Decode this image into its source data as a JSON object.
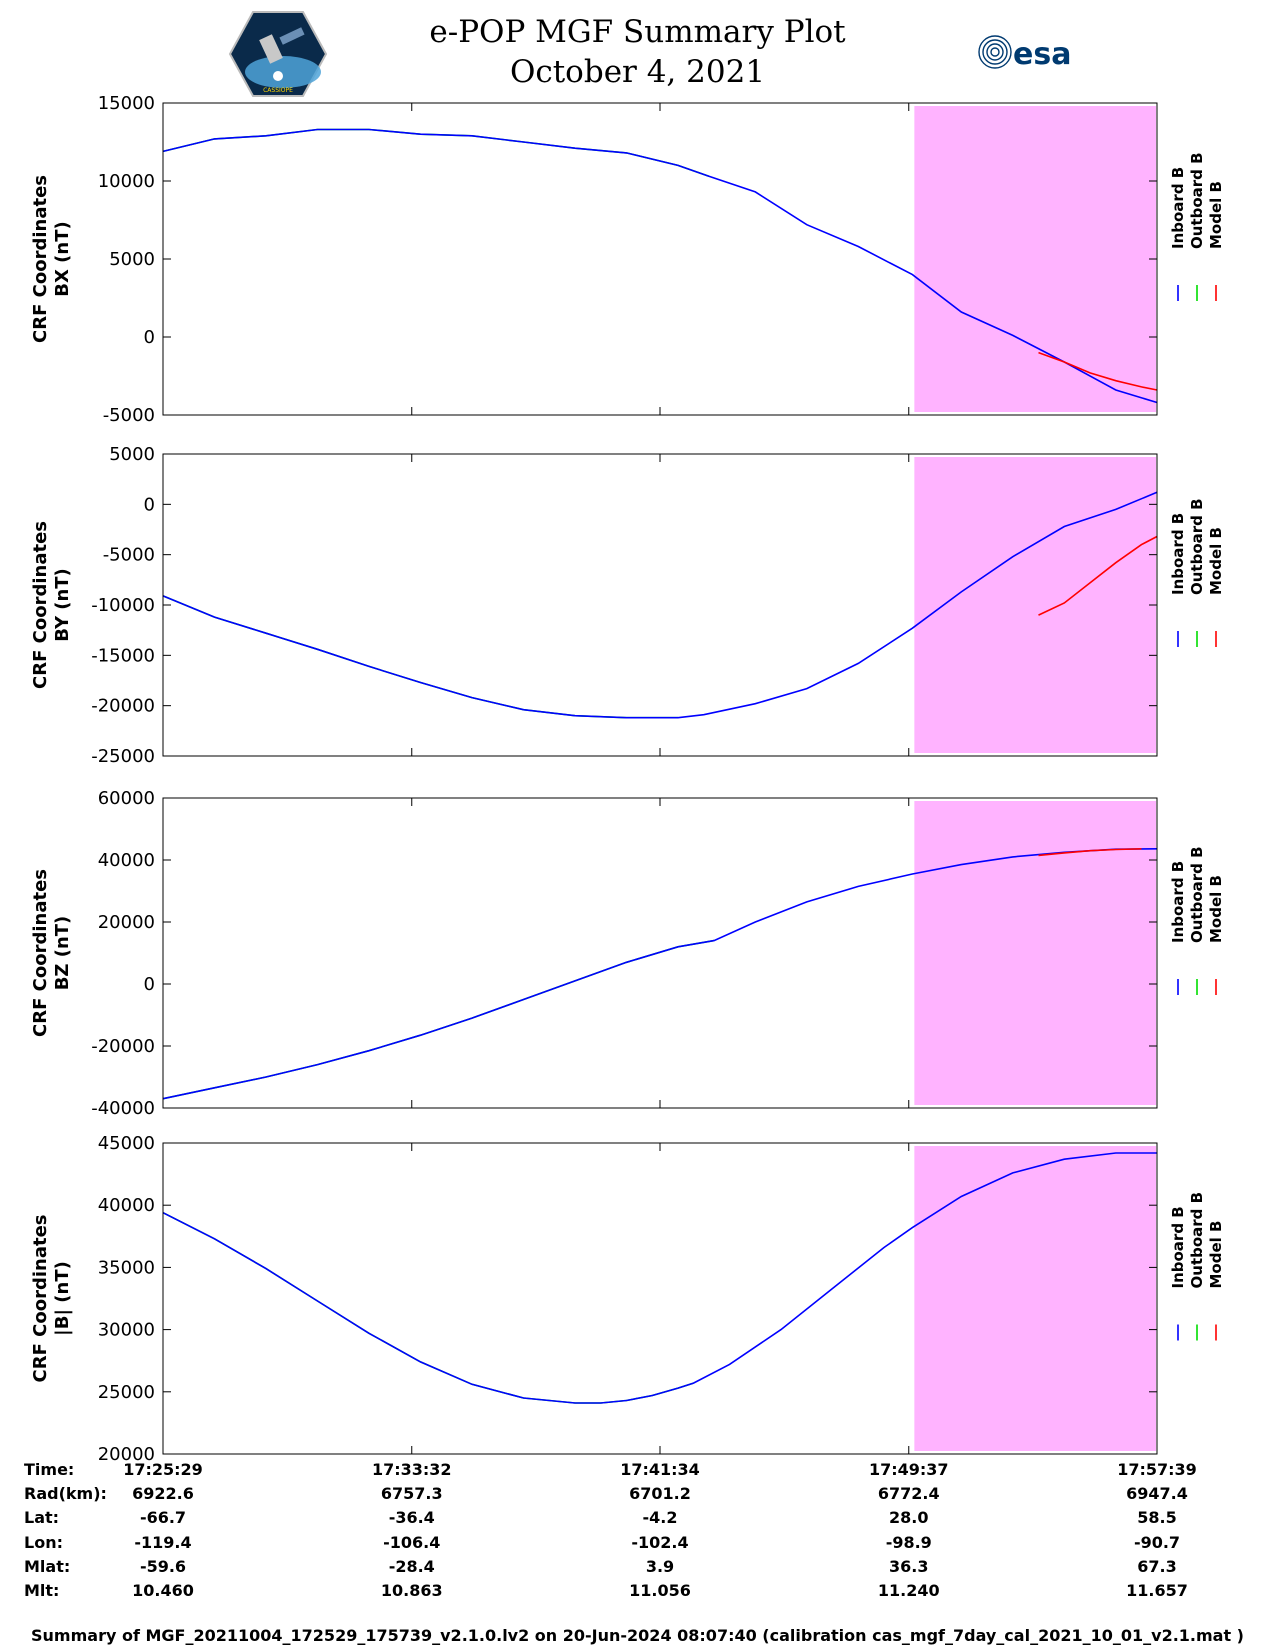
{
  "header": {
    "title_line1": "e-POP MGF Summary Plot",
    "title_line2": "October 4, 2021",
    "logo_left": "CASSIOPE",
    "logo_right": "esa"
  },
  "colors": {
    "inboard": "#0000ff",
    "outboard": "#00dd00",
    "model": "#ff0000",
    "highlight": "#ffb3ff"
  },
  "chart_data": [
    {
      "type": "line",
      "ylabel_line1": "CRF Coordinates",
      "ylabel_line2": "BX (nT)",
      "ylim": [
        -5000,
        15000
      ],
      "yticks": [
        -5000,
        0,
        5000,
        10000,
        15000
      ],
      "xlim": [
        0,
        1930
      ],
      "highlight_span": [
        1455,
        1930
      ],
      "legend": [
        "Inboard B",
        "Outboard B",
        "Model B"
      ],
      "series": [
        {
          "name": "Outboard B",
          "color": "outboard",
          "x": [
            0,
            100,
            200,
            300,
            400,
            500,
            600,
            700,
            800,
            900,
            1000,
            1060
          ],
          "y": [
            11900,
            12700,
            12900,
            13300,
            13300,
            13000,
            12900,
            12500,
            12100,
            11800,
            11000,
            10300
          ]
        },
        {
          "name": "Inboard B",
          "color": "inboard",
          "x": [
            0,
            100,
            200,
            300,
            400,
            500,
            600,
            700,
            800,
            900,
            1000,
            1060,
            1150,
            1250,
            1350,
            1455,
            1550,
            1650,
            1750,
            1850,
            1930
          ],
          "y": [
            11900,
            12700,
            12900,
            13300,
            13300,
            13000,
            12900,
            12500,
            12100,
            11800,
            11000,
            10300,
            9300,
            7200,
            5800,
            4000,
            1600,
            100,
            -1600,
            -3400,
            -4200
          ]
        },
        {
          "name": "Model B",
          "color": "model",
          "x": [
            1700,
            1750,
            1800,
            1850,
            1900,
            1930
          ],
          "y": [
            -1000,
            -1600,
            -2300,
            -2800,
            -3200,
            -3400
          ]
        }
      ]
    },
    {
      "type": "line",
      "ylabel_line1": "CRF Coordinates",
      "ylabel_line2": "BY (nT)",
      "ylim": [
        -25000,
        5000
      ],
      "yticks": [
        -25000,
        -20000,
        -15000,
        -10000,
        -5000,
        0,
        5000
      ],
      "xlim": [
        0,
        1930
      ],
      "highlight_span": [
        1455,
        1930
      ],
      "legend": [
        "Inboard B",
        "Outboard B",
        "Model B"
      ],
      "series": [
        {
          "name": "Outboard B",
          "color": "outboard",
          "x": [
            0,
            100,
            200,
            300,
            400,
            500,
            600,
            700,
            800,
            900,
            1000
          ],
          "y": [
            -9100,
            -11200,
            -12800,
            -14400,
            -16100,
            -17700,
            -19200,
            -20400,
            -21000,
            -21200,
            -21200
          ]
        },
        {
          "name": "Inboard B",
          "color": "inboard",
          "x": [
            0,
            100,
            200,
            300,
            400,
            500,
            600,
            700,
            800,
            900,
            1000,
            1050,
            1150,
            1250,
            1350,
            1455,
            1550,
            1650,
            1750,
            1850,
            1930
          ],
          "y": [
            -9100,
            -11200,
            -12800,
            -14400,
            -16100,
            -17700,
            -19200,
            -20400,
            -21000,
            -21200,
            -21200,
            -20900,
            -19800,
            -18300,
            -15800,
            -12300,
            -8700,
            -5200,
            -2200,
            -500,
            1200
          ]
        },
        {
          "name": "Model B",
          "color": "model",
          "x": [
            1700,
            1750,
            1800,
            1850,
            1900,
            1930
          ],
          "y": [
            -11000,
            -9800,
            -7800,
            -5800,
            -4000,
            -3200
          ]
        }
      ]
    },
    {
      "type": "line",
      "ylabel_line1": "CRF Coordinates",
      "ylabel_line2": "BZ (nT)",
      "ylim": [
        -40000,
        60000
      ],
      "yticks": [
        -40000,
        -20000,
        0,
        20000,
        40000,
        60000
      ],
      "xlim": [
        0,
        1930
      ],
      "highlight_span": [
        1455,
        1930
      ],
      "legend": [
        "Inboard B",
        "Outboard B",
        "Model B"
      ],
      "series": [
        {
          "name": "Outboard B",
          "color": "outboard",
          "x": [
            0,
            100,
            200,
            300,
            400,
            500,
            600,
            700,
            800,
            900,
            1000,
            1070
          ],
          "y": [
            -37000,
            -33500,
            -30000,
            -26000,
            -21500,
            -16500,
            -11000,
            -5000,
            1000,
            7000,
            12000,
            14000
          ]
        },
        {
          "name": "Inboard B",
          "color": "inboard",
          "x": [
            0,
            100,
            200,
            300,
            400,
            500,
            600,
            700,
            800,
            900,
            1000,
            1070,
            1150,
            1250,
            1350,
            1455,
            1550,
            1650,
            1750,
            1850,
            1930
          ],
          "y": [
            -37000,
            -33500,
            -30000,
            -26000,
            -21500,
            -16500,
            -11000,
            -5000,
            1000,
            7000,
            12000,
            14000,
            20000,
            26500,
            31500,
            35500,
            38500,
            41000,
            42500,
            43500,
            43600
          ]
        },
        {
          "name": "Model B",
          "color": "model",
          "x": [
            1700,
            1750,
            1800,
            1850,
            1900
          ],
          "y": [
            41500,
            42300,
            43000,
            43400,
            43600
          ]
        }
      ]
    },
    {
      "type": "line",
      "ylabel_line1": "CRF Coordinates",
      "ylabel_line2": "|B| (nT)",
      "ylim": [
        20000,
        45000
      ],
      "yticks": [
        20000,
        25000,
        30000,
        35000,
        40000,
        45000
      ],
      "xlim": [
        0,
        1930
      ],
      "highlight_span": [
        1455,
        1930
      ],
      "legend": [
        "Inboard B",
        "Outboard B",
        "Model B"
      ],
      "series": [
        {
          "name": "Outboard B",
          "color": "outboard",
          "x": [
            0,
            100,
            200,
            300,
            400,
            500,
            600,
            700,
            800,
            850,
            900,
            950,
            1000,
            1030
          ],
          "y": [
            39400,
            37300,
            34900,
            32300,
            29700,
            27400,
            25600,
            24500,
            24100,
            24100,
            24300,
            24700,
            25300,
            25700
          ]
        },
        {
          "name": "Inboard B",
          "color": "inboard",
          "x": [
            0,
            100,
            200,
            300,
            400,
            500,
            600,
            700,
            800,
            850,
            900,
            950,
            1000,
            1030,
            1100,
            1200,
            1300,
            1400,
            1455,
            1550,
            1650,
            1750,
            1850,
            1930
          ],
          "y": [
            39400,
            37300,
            34900,
            32300,
            29700,
            27400,
            25600,
            24500,
            24100,
            24100,
            24300,
            24700,
            25300,
            25700,
            27200,
            30000,
            33300,
            36600,
            38200,
            40700,
            42600,
            43700,
            44200,
            44200
          ]
        }
      ]
    }
  ],
  "x_axis": {
    "tick_positions": [
      0,
      483,
      965,
      1448,
      1930
    ],
    "row_labels": [
      "Time:",
      "Rad(km):",
      "Lat:",
      "Lon:",
      "Mlat:",
      "Mlt:"
    ],
    "columns": [
      [
        "17:25:29",
        "6922.6",
        "-66.7",
        "-119.4",
        "-59.6",
        "10.460"
      ],
      [
        "17:33:32",
        "6757.3",
        "-36.4",
        "-106.4",
        "-28.4",
        "10.863"
      ],
      [
        "17:41:34",
        "6701.2",
        "-4.2",
        "-102.4",
        "3.9",
        "11.056"
      ],
      [
        "17:49:37",
        "6772.4",
        "28.0",
        "-98.9",
        "36.3",
        "11.240"
      ],
      [
        "17:57:39",
        "6947.4",
        "58.5",
        "-90.7",
        "67.3",
        "11.657"
      ]
    ]
  },
  "footnote": "Summary of MGF_20211004_172529_175739_v2.1.0.lv2 on 20-Jun-2024 08:07:40 (calibration cas_mgf_7day_cal_2021_10_01_v2.1.mat )"
}
